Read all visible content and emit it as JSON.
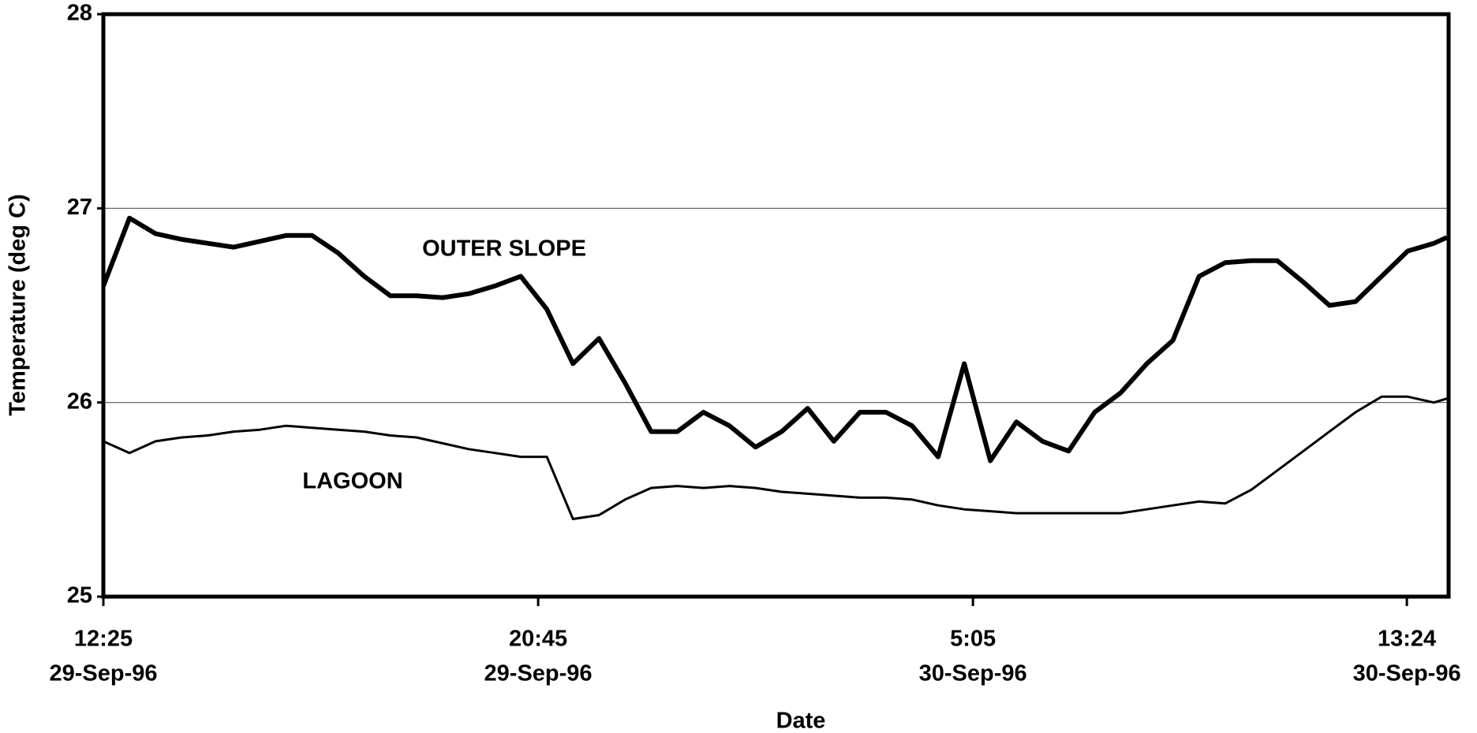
{
  "chart_data": {
    "type": "line",
    "x_label": "Date",
    "y_label": "Temperature (deg C)",
    "annotations": [
      "OUTER SLOPE",
      "LAGOON"
    ],
    "x": [
      "1996-09-29T12:25",
      "1996-09-29T12:55",
      "1996-09-29T13:25",
      "1996-09-29T13:55",
      "1996-09-29T14:25",
      "1996-09-29T14:55",
      "1996-09-29T15:25",
      "1996-09-29T15:55",
      "1996-09-29T16:25",
      "1996-09-29T16:55",
      "1996-09-29T17:25",
      "1996-09-29T17:55",
      "1996-09-29T18:25",
      "1996-09-29T18:55",
      "1996-09-29T19:25",
      "1996-09-29T19:55",
      "1996-09-29T20:25",
      "1996-09-29T20:55",
      "1996-09-29T21:25",
      "1996-09-29T21:55",
      "1996-09-29T22:25",
      "1996-09-29T22:55",
      "1996-09-29T23:25",
      "1996-09-29T23:55",
      "1996-09-30T00:25",
      "1996-09-30T00:55",
      "1996-09-30T01:25",
      "1996-09-30T01:55",
      "1996-09-30T02:25",
      "1996-09-30T02:55",
      "1996-09-30T03:25",
      "1996-09-30T03:55",
      "1996-09-30T04:25",
      "1996-09-30T04:55",
      "1996-09-30T05:25",
      "1996-09-30T05:55",
      "1996-09-30T06:25",
      "1996-09-30T06:55",
      "1996-09-30T07:25",
      "1996-09-30T07:55",
      "1996-09-30T08:25",
      "1996-09-30T08:55",
      "1996-09-30T09:25",
      "1996-09-30T09:55",
      "1996-09-30T10:25",
      "1996-09-30T10:55",
      "1996-09-30T11:25",
      "1996-09-30T11:55",
      "1996-09-30T12:25",
      "1996-09-30T12:55",
      "1996-09-30T13:25",
      "1996-09-30T13:55",
      "1996-09-30T14:10"
    ],
    "series": [
      {
        "name": "OUTER SLOPE",
        "color": "#000000",
        "values": [
          26.6,
          26.95,
          26.87,
          26.84,
          26.82,
          26.8,
          26.83,
          26.86,
          26.86,
          26.77,
          26.65,
          26.55,
          26.55,
          26.54,
          26.56,
          26.6,
          26.65,
          26.48,
          26.2,
          26.33,
          26.1,
          25.85,
          25.85,
          25.95,
          25.88,
          25.77,
          25.85,
          25.97,
          25.8,
          25.95,
          25.95,
          25.88,
          25.72,
          26.2,
          25.7,
          25.9,
          25.8,
          25.75,
          25.95,
          26.05,
          26.2,
          26.32,
          26.65,
          26.72,
          26.73,
          26.73,
          26.62,
          26.5,
          26.52,
          26.65,
          26.78,
          26.82,
          26.85
        ]
      },
      {
        "name": "LAGOON",
        "color": "#000000",
        "values": [
          25.8,
          25.74,
          25.8,
          25.82,
          25.83,
          25.85,
          25.86,
          25.88,
          25.87,
          25.86,
          25.85,
          25.83,
          25.82,
          25.79,
          25.76,
          25.74,
          25.72,
          25.72,
          25.4,
          25.42,
          25.5,
          25.56,
          25.57,
          25.56,
          25.57,
          25.56,
          25.54,
          25.53,
          25.52,
          25.51,
          25.51,
          25.5,
          25.47,
          25.45,
          25.44,
          25.43,
          25.43,
          25.43,
          25.43,
          25.43,
          25.45,
          25.47,
          25.49,
          25.48,
          25.55,
          25.65,
          25.75,
          25.85,
          25.95,
          26.03,
          26.03,
          26.0,
          26.02
        ]
      }
    ],
    "xlim": [
      "1996-09-29T12:25",
      "1996-09-30T14:12"
    ],
    "xticks": [
      {
        "value": "1996-09-29T12:25",
        "label": [
          "12:25",
          "29-Sep-96"
        ]
      },
      {
        "value": "1996-09-29T20:45",
        "label": [
          "20:45",
          "29-Sep-96"
        ]
      },
      {
        "value": "1996-09-30T05:05",
        "label": [
          "5:05",
          "30-Sep-96"
        ]
      },
      {
        "value": "1996-09-30T13:24",
        "label": [
          "13:24",
          "30-Sep-96"
        ]
      }
    ],
    "ylim": [
      25,
      28
    ],
    "yticks": [
      25,
      26,
      27,
      28
    ],
    "grid": true
  }
}
